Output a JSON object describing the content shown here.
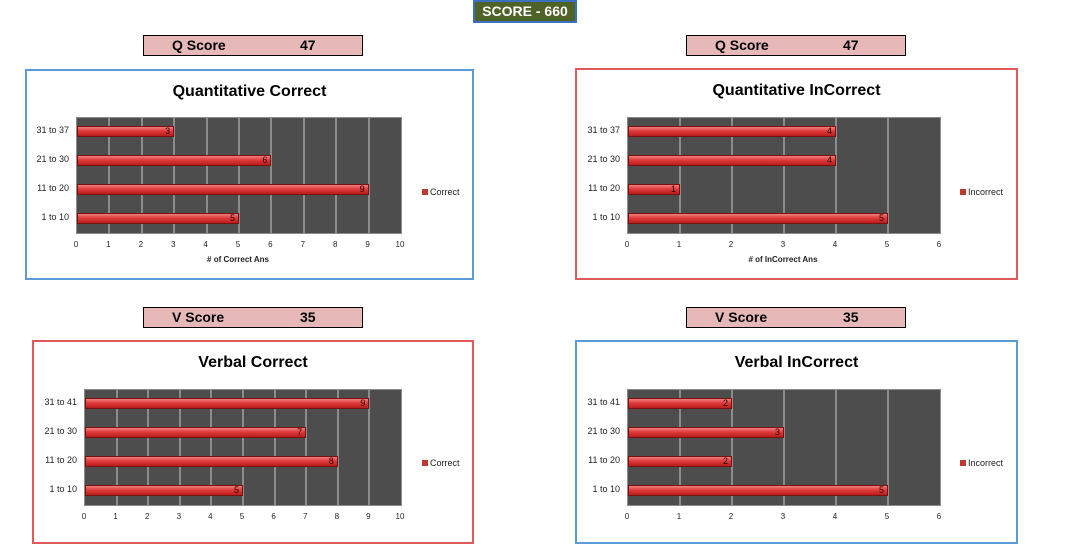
{
  "header": {
    "total_score": "SCORE - 660"
  },
  "scores": [
    {
      "label": "Q Score",
      "value": "47"
    },
    {
      "label": "Q Score",
      "value": "47"
    },
    {
      "label": "V Score",
      "value": "35"
    },
    {
      "label": "V Score",
      "value": "35"
    }
  ],
  "colors": {
    "bar": "#d93030",
    "plot_bg": "#4d4d4d",
    "score_bg": "#e6b9b8",
    "total_bg": "#4f6228",
    "blue_border": "#5b9bd5",
    "red_border": "#e05a5a"
  },
  "chart_data": [
    {
      "type": "bar",
      "orientation": "horizontal",
      "title": "Quantitative Correct",
      "categories": [
        "31 to 37",
        "21 to 30",
        "11 to 20",
        "1 to 10"
      ],
      "values": [
        3,
        6,
        9,
        5
      ],
      "xlim": [
        0,
        10
      ],
      "xticks": [
        "0",
        "1",
        "2",
        "3",
        "4",
        "5",
        "6",
        "7",
        "8",
        "9",
        "10"
      ],
      "xlabel": "# of Correct Ans",
      "legend": "Correct",
      "legend_position": "right",
      "grid": true
    },
    {
      "type": "bar",
      "orientation": "horizontal",
      "title": "Quantitative InCorrect",
      "categories": [
        "31 to 37",
        "21 to 30",
        "11 to 20",
        "1 to 10"
      ],
      "values": [
        4,
        4,
        1,
        5
      ],
      "xlim": [
        0,
        6
      ],
      "xticks": [
        "0",
        "1",
        "2",
        "3",
        "4",
        "5",
        "6"
      ],
      "xlabel": "# of InCorrect Ans",
      "legend": "Incorrect",
      "legend_position": "right",
      "grid": true
    },
    {
      "type": "bar",
      "orientation": "horizontal",
      "title": "Verbal Correct",
      "categories": [
        "31 to 41",
        "21 to 30",
        "11 to 20",
        "1 to 10"
      ],
      "values": [
        9,
        7,
        8,
        5
      ],
      "xlim": [
        0,
        10
      ],
      "xticks": [
        "0",
        "1",
        "2",
        "3",
        "4",
        "5",
        "6",
        "7",
        "8",
        "9",
        "10"
      ],
      "xlabel": "",
      "legend": "Correct",
      "legend_position": "right",
      "grid": true
    },
    {
      "type": "bar",
      "orientation": "horizontal",
      "title": "Verbal InCorrect",
      "categories": [
        "31 to 41",
        "21 to 30",
        "11 to 20",
        "1 to 10"
      ],
      "values": [
        2,
        3,
        2,
        5
      ],
      "xlim": [
        0,
        6
      ],
      "xticks": [
        "0",
        "1",
        "2",
        "3",
        "4",
        "5",
        "6"
      ],
      "xlabel": "",
      "legend": "Incorrect",
      "legend_position": "right",
      "grid": true
    }
  ]
}
